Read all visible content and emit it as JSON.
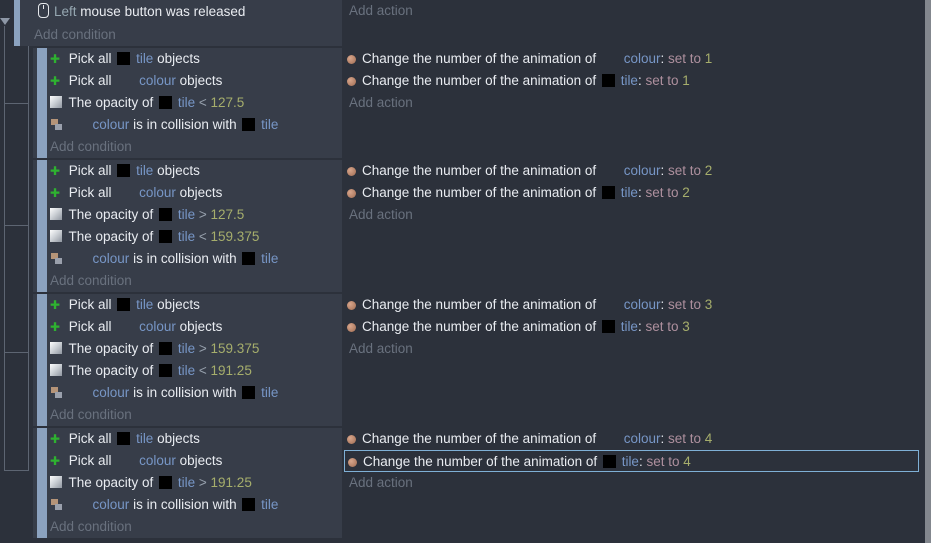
{
  "palette": {
    "page_bg": "#2c313b",
    "event_bg": "#373d49",
    "event_bar": "#8ba2bf",
    "object_name_color": "#7796c6",
    "number_color": "#a6ae6c",
    "operator_color": "#97a1ad",
    "set_to_color": "#ae909e",
    "parameter_color": "#95a7b1",
    "text_color": "#e9ecf1",
    "muted_color": "#69717e",
    "selection_border": "#7fb0d6",
    "scrollbar_color": "#83878e",
    "pick_icon_green": "#2eb230"
  },
  "labels": {
    "add_condition": "Add condition",
    "add_action": "Add action"
  },
  "top_event": {
    "condition_icon": "mouse-icon",
    "segments": [
      {
        "t": "Left",
        "c": "param"
      },
      {
        "t": "mouse button was released"
      }
    ]
  },
  "blocks": [
    {
      "conditions": [
        {
          "icon": "pick-objects-icon",
          "segments": [
            {
              "t": "Pick all"
            },
            {
              "thumb": "tile"
            },
            {
              "t": "tile",
              "c": "object"
            },
            {
              "t": "objects"
            }
          ]
        },
        {
          "icon": "pick-objects-icon",
          "segments": [
            {
              "t": "Pick all"
            },
            {
              "thumb": "colour"
            },
            {
              "t": "colour",
              "c": "object"
            },
            {
              "t": "objects"
            }
          ]
        },
        {
          "icon": "opacity-icon",
          "segments": [
            {
              "t": "The opacity of"
            },
            {
              "thumb": "tile"
            },
            {
              "t": "tile",
              "c": "object"
            },
            {
              "t": "<",
              "c": "op"
            },
            {
              "t": "127.5",
              "c": "number"
            }
          ]
        },
        {
          "icon": "collision-icon",
          "segments": [
            {
              "thumb": "colour"
            },
            {
              "t": "colour",
              "c": "object"
            },
            {
              "t": "is in collision with"
            },
            {
              "thumb": "tile"
            },
            {
              "t": "tile",
              "c": "object"
            }
          ]
        }
      ],
      "actions": [
        {
          "icon": "animation-icon",
          "selected": false,
          "segments": [
            {
              "t": "Change the number of the animation of"
            },
            {
              "thumb": "colour"
            },
            {
              "t": "colour",
              "c": "object"
            },
            {
              "t": ":",
              "tight": true
            },
            {
              "t": "set to",
              "c": "setto"
            },
            {
              "t": "1",
              "c": "number"
            }
          ]
        },
        {
          "icon": "animation-icon",
          "selected": false,
          "segments": [
            {
              "t": "Change the number of the animation of"
            },
            {
              "thumb": "tile"
            },
            {
              "t": "tile",
              "c": "object"
            },
            {
              "t": ":",
              "tight": true
            },
            {
              "t": "set to",
              "c": "setto"
            },
            {
              "t": "1",
              "c": "number"
            }
          ]
        }
      ]
    },
    {
      "conditions": [
        {
          "icon": "pick-objects-icon",
          "segments": [
            {
              "t": "Pick all"
            },
            {
              "thumb": "tile"
            },
            {
              "t": "tile",
              "c": "object"
            },
            {
              "t": "objects"
            }
          ]
        },
        {
          "icon": "pick-objects-icon",
          "segments": [
            {
              "t": "Pick all"
            },
            {
              "thumb": "colour"
            },
            {
              "t": "colour",
              "c": "object"
            },
            {
              "t": "objects"
            }
          ]
        },
        {
          "icon": "opacity-icon",
          "segments": [
            {
              "t": "The opacity of"
            },
            {
              "thumb": "tile"
            },
            {
              "t": "tile",
              "c": "object"
            },
            {
              "t": ">",
              "c": "op"
            },
            {
              "t": "127.5",
              "c": "number"
            }
          ]
        },
        {
          "icon": "opacity-icon",
          "segments": [
            {
              "t": "The opacity of"
            },
            {
              "thumb": "tile"
            },
            {
              "t": "tile",
              "c": "object"
            },
            {
              "t": "<",
              "c": "op"
            },
            {
              "t": "159.375",
              "c": "number"
            }
          ]
        },
        {
          "icon": "collision-icon",
          "segments": [
            {
              "thumb": "colour"
            },
            {
              "t": "colour",
              "c": "object"
            },
            {
              "t": "is in collision with"
            },
            {
              "thumb": "tile"
            },
            {
              "t": "tile",
              "c": "object"
            }
          ]
        }
      ],
      "actions": [
        {
          "icon": "animation-icon",
          "selected": false,
          "segments": [
            {
              "t": "Change the number of the animation of"
            },
            {
              "thumb": "colour"
            },
            {
              "t": "colour",
              "c": "object"
            },
            {
              "t": ":",
              "tight": true
            },
            {
              "t": "set to",
              "c": "setto"
            },
            {
              "t": "2",
              "c": "number"
            }
          ]
        },
        {
          "icon": "animation-icon",
          "selected": false,
          "segments": [
            {
              "t": "Change the number of the animation of"
            },
            {
              "thumb": "tile"
            },
            {
              "t": "tile",
              "c": "object"
            },
            {
              "t": ":",
              "tight": true
            },
            {
              "t": "set to",
              "c": "setto"
            },
            {
              "t": "2",
              "c": "number"
            }
          ]
        }
      ]
    },
    {
      "conditions": [
        {
          "icon": "pick-objects-icon",
          "segments": [
            {
              "t": "Pick all"
            },
            {
              "thumb": "tile"
            },
            {
              "t": "tile",
              "c": "object"
            },
            {
              "t": "objects"
            }
          ]
        },
        {
          "icon": "pick-objects-icon",
          "segments": [
            {
              "t": "Pick all"
            },
            {
              "thumb": "colour"
            },
            {
              "t": "colour",
              "c": "object"
            },
            {
              "t": "objects"
            }
          ]
        },
        {
          "icon": "opacity-icon",
          "segments": [
            {
              "t": "The opacity of"
            },
            {
              "thumb": "tile"
            },
            {
              "t": "tile",
              "c": "object"
            },
            {
              "t": ">",
              "c": "op"
            },
            {
              "t": "159.375",
              "c": "number"
            }
          ]
        },
        {
          "icon": "opacity-icon",
          "segments": [
            {
              "t": "The opacity of"
            },
            {
              "thumb": "tile"
            },
            {
              "t": "tile",
              "c": "object"
            },
            {
              "t": "<",
              "c": "op"
            },
            {
              "t": "191.25",
              "c": "number"
            }
          ]
        },
        {
          "icon": "collision-icon",
          "segments": [
            {
              "thumb": "colour"
            },
            {
              "t": "colour",
              "c": "object"
            },
            {
              "t": "is in collision with"
            },
            {
              "thumb": "tile"
            },
            {
              "t": "tile",
              "c": "object"
            }
          ]
        }
      ],
      "actions": [
        {
          "icon": "animation-icon",
          "selected": false,
          "segments": [
            {
              "t": "Change the number of the animation of"
            },
            {
              "thumb": "colour"
            },
            {
              "t": "colour",
              "c": "object"
            },
            {
              "t": ":",
              "tight": true
            },
            {
              "t": "set to",
              "c": "setto"
            },
            {
              "t": "3",
              "c": "number"
            }
          ]
        },
        {
          "icon": "animation-icon",
          "selected": false,
          "segments": [
            {
              "t": "Change the number of the animation of"
            },
            {
              "thumb": "tile"
            },
            {
              "t": "tile",
              "c": "object"
            },
            {
              "t": ":",
              "tight": true
            },
            {
              "t": "set to",
              "c": "setto"
            },
            {
              "t": "3",
              "c": "number"
            }
          ]
        }
      ]
    },
    {
      "conditions": [
        {
          "icon": "pick-objects-icon",
          "segments": [
            {
              "t": "Pick all"
            },
            {
              "thumb": "tile"
            },
            {
              "t": "tile",
              "c": "object"
            },
            {
              "t": "objects"
            }
          ]
        },
        {
          "icon": "pick-objects-icon",
          "segments": [
            {
              "t": "Pick all"
            },
            {
              "thumb": "colour"
            },
            {
              "t": "colour",
              "c": "object"
            },
            {
              "t": "objects"
            }
          ]
        },
        {
          "icon": "opacity-icon",
          "segments": [
            {
              "t": "The opacity of"
            },
            {
              "thumb": "tile"
            },
            {
              "t": "tile",
              "c": "object"
            },
            {
              "t": ">",
              "c": "op"
            },
            {
              "t": "191.25",
              "c": "number"
            }
          ]
        },
        {
          "icon": "collision-icon",
          "segments": [
            {
              "thumb": "colour"
            },
            {
              "t": "colour",
              "c": "object"
            },
            {
              "t": "is in collision with"
            },
            {
              "thumb": "tile"
            },
            {
              "t": "tile",
              "c": "object"
            }
          ]
        }
      ],
      "actions": [
        {
          "icon": "animation-icon",
          "selected": false,
          "segments": [
            {
              "t": "Change the number of the animation of"
            },
            {
              "thumb": "colour"
            },
            {
              "t": "colour",
              "c": "object"
            },
            {
              "t": ":",
              "tight": true
            },
            {
              "t": "set to",
              "c": "setto"
            },
            {
              "t": "4",
              "c": "number"
            }
          ]
        },
        {
          "icon": "animation-icon",
          "selected": true,
          "segments": [
            {
              "t": "Change the number of the animation of"
            },
            {
              "thumb": "tile"
            },
            {
              "t": "tile",
              "c": "object"
            },
            {
              "t": ":",
              "tight": true
            },
            {
              "t": "set to",
              "c": "setto"
            },
            {
              "t": "4",
              "c": "number"
            }
          ]
        }
      ]
    }
  ]
}
